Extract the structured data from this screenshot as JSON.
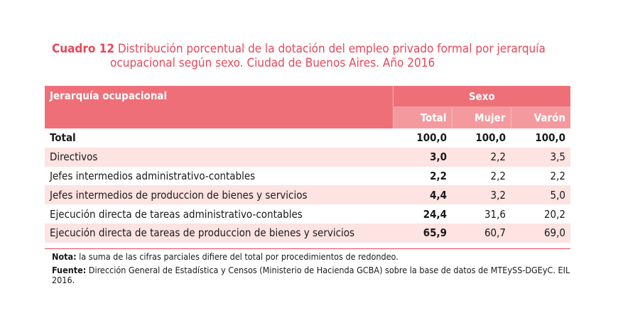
{
  "title": {
    "label": "Cuadro 12",
    "line1": "Distribución porcentual de la dotación del empleo privado formal por jerarquía",
    "line2": "ocupacional según sexo. Ciudad de Buenos Aires. Año 2016"
  },
  "table": {
    "col_header": "Jerarquía ocupacional",
    "group_header": "Sexo",
    "sub_headers": [
      "Total",
      "Mujer",
      "Varón"
    ],
    "rows": [
      {
        "label": "Total",
        "total": "100,0",
        "mujer": "100,0",
        "varon": "100,0"
      },
      {
        "label": "Directivos",
        "total": "3,0",
        "mujer": "2,2",
        "varon": "3,5"
      },
      {
        "label": "Jefes intermedios administrativo-contables",
        "total": "2,2",
        "mujer": "2,2",
        "varon": "2,2"
      },
      {
        "label": "Jefes intermedios de produccion de bienes y servicios",
        "total": "4,4",
        "mujer": "3,2",
        "varon": "5,0"
      },
      {
        "label": "Ejecución directa de tareas administrativo-contables",
        "total": "24,4",
        "mujer": "31,6",
        "varon": "20,2"
      },
      {
        "label": "Ejecución directa de tareas de produccion de bienes y servicios",
        "total": "65,9",
        "mujer": "60,7",
        "varon": "69,0"
      }
    ]
  },
  "notes": {
    "nota_label": "Nota:",
    "nota_text": " la suma de las cifras parciales difiere del total por procedimientos de redondeo.",
    "fuente_label": "Fuente:",
    "fuente_text": " Dirección General de Estadística y Censos (Ministerio de Hacienda GCBA) sobre la base de datos de MTEySS-DGEyC. EIL 2016."
  },
  "colors": {
    "accent": "#e7485a",
    "header_dark": "#ef6f78",
    "header_light": "#f49a9f",
    "row_shade": "#fde3e1"
  }
}
